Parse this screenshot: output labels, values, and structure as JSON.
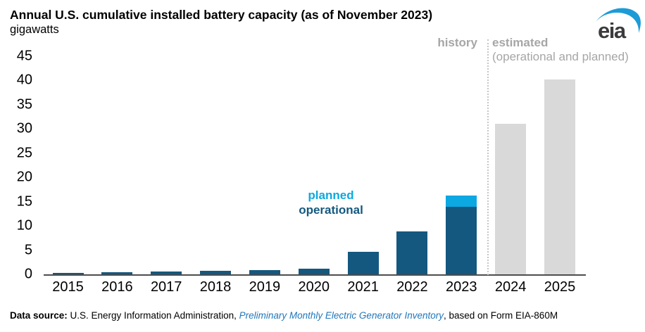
{
  "header": {
    "title": "Annual U.S. cumulative installed battery capacity (as of November 2023)",
    "unit_label": "gigawatts",
    "logo_text": "eia"
  },
  "annotations": {
    "history": "history",
    "estimated": "estimated",
    "estimated_sub": "(operational and planned)",
    "planned": "planned",
    "operational": "operational"
  },
  "footer": {
    "prefix_bold": "Data source: ",
    "org": "U.S. Energy Information Administration, ",
    "link": "Preliminary Monthly Electric Generator Inventory",
    "suffix": ", based on Form EIA-860M"
  },
  "colors": {
    "operational": "#14587f",
    "planned": "#0ca8e1",
    "estimated": "#d9d9d9",
    "annotation_gray": "#a6a6a6",
    "link_blue": "#2077bc",
    "logo_blue": "#1d9bd7",
    "axis_line": "#4d4d4d"
  },
  "chart_data": {
    "type": "bar",
    "stacked": true,
    "title": "Annual U.S. cumulative installed battery capacity (as of November 2023)",
    "ylabel": "gigawatts",
    "xlabel": "",
    "ylim": [
      0,
      45
    ],
    "yticks": [
      0,
      5,
      10,
      15,
      20,
      25,
      30,
      35,
      40,
      45
    ],
    "grid": false,
    "legend_position": "in-plot text annotations",
    "categories": [
      "2015",
      "2016",
      "2017",
      "2018",
      "2019",
      "2020",
      "2021",
      "2022",
      "2023",
      "2024",
      "2025"
    ],
    "series": [
      {
        "name": "operational",
        "label": "operational",
        "values": [
          0.3,
          0.4,
          0.6,
          0.7,
          0.8,
          1.2,
          4.6,
          8.9,
          13.9,
          0,
          0
        ]
      },
      {
        "name": "planned",
        "label": "planned",
        "values": [
          0,
          0,
          0,
          0,
          0,
          0,
          0,
          0,
          2.4,
          0,
          0
        ]
      },
      {
        "name": "estimated",
        "label": "estimated (operational and planned)",
        "values": [
          0,
          0,
          0,
          0,
          0,
          0,
          0,
          0,
          0,
          31.0,
          40.2
        ]
      }
    ],
    "divider_after_category": "2023",
    "region_labels": {
      "left_of_divider": "history",
      "right_of_divider": "estimated (operational and planned)"
    }
  }
}
